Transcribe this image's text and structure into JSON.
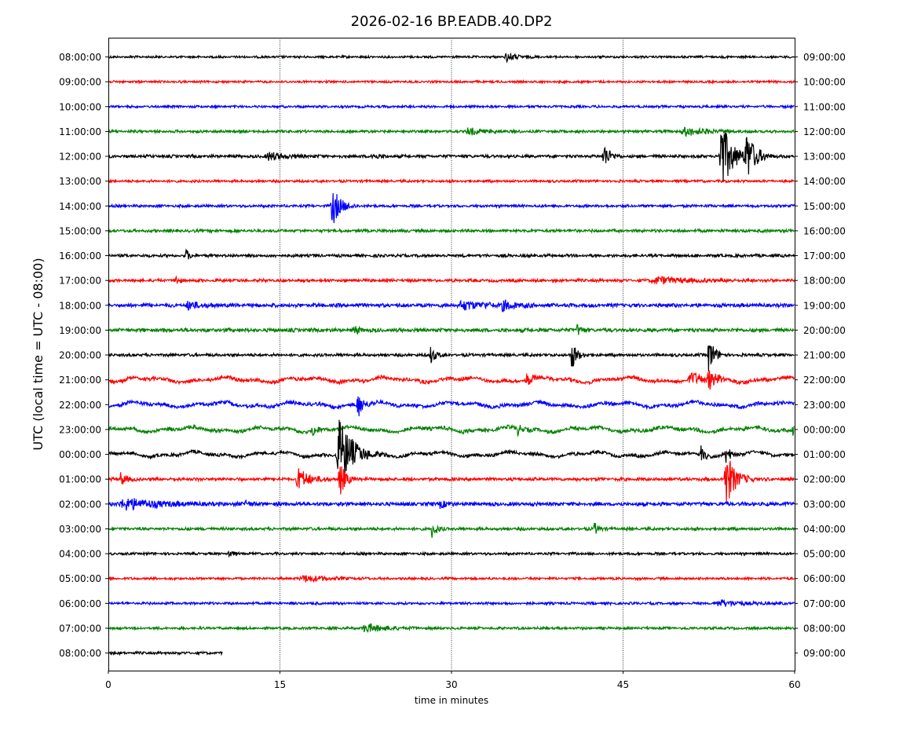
{
  "chart_data": {
    "type": "line",
    "title": "2026-02-16 BP.EADB.40.DP2",
    "xlabel": "time in minutes",
    "ylabel": "UTC (local time = UTC - 08:00)",
    "xlim": [
      0,
      60
    ],
    "x_ticks": [
      0,
      15,
      30,
      45,
      60
    ],
    "x_tick_labels": [
      "0",
      "15",
      "30",
      "45",
      "60"
    ],
    "grid": "vertical dotted lines at 15, 30, 45",
    "trace_colors": [
      "#000000",
      "#ff0000",
      "#0000ff",
      "#008000"
    ],
    "left_labels": [
      "08:00:00",
      "09:00:00",
      "10:00:00",
      "11:00:00",
      "12:00:00",
      "13:00:00",
      "14:00:00",
      "15:00:00",
      "16:00:00",
      "17:00:00",
      "18:00:00",
      "19:00:00",
      "20:00:00",
      "21:00:00",
      "22:00:00",
      "23:00:00",
      "00:00:00",
      "01:00:00",
      "02:00:00",
      "03:00:00",
      "04:00:00",
      "05:00:00",
      "06:00:00",
      "07:00:00",
      "08:00:00"
    ],
    "right_labels": [
      "09:00:00",
      "10:00:00",
      "11:00:00",
      "12:00:00",
      "13:00:00",
      "14:00:00",
      "15:00:00",
      "16:00:00",
      "17:00:00",
      "18:00:00",
      "19:00:00",
      "20:00:00",
      "21:00:00",
      "22:00:00",
      "23:00:00",
      "00:00:00",
      "01:00:00",
      "02:00:00",
      "03:00:00",
      "04:00:00",
      "05:00:00",
      "06:00:00",
      "07:00:00",
      "08:00:00",
      "09:00:00"
    ],
    "traces": [
      {
        "noise": 1.5,
        "end": 60,
        "events": [
          [
            34.8,
            6,
            0.8
          ]
        ]
      },
      {
        "noise": 1.5,
        "end": 60,
        "events": []
      },
      {
        "noise": 1.6,
        "end": 60,
        "events": []
      },
      {
        "noise": 1.8,
        "end": 60,
        "events": [
          [
            31.5,
            4,
            1.5
          ],
          [
            50.5,
            5,
            2
          ]
        ]
      },
      {
        "noise": 2.0,
        "end": 60,
        "events": [
          [
            14.0,
            5,
            1.5
          ],
          [
            23.0,
            4,
            0.6
          ],
          [
            43.3,
            18,
            0.5
          ],
          [
            53.6,
            45,
            1.0
          ],
          [
            55.8,
            30,
            0.8
          ]
        ]
      },
      {
        "noise": 1.7,
        "end": 60,
        "events": []
      },
      {
        "noise": 1.8,
        "end": 60,
        "events": [
          [
            19.6,
            26,
            0.7
          ]
        ]
      },
      {
        "noise": 2.0,
        "end": 60,
        "events": []
      },
      {
        "noise": 2.0,
        "end": 60,
        "events": [
          [
            6.8,
            7,
            0.3
          ]
        ]
      },
      {
        "noise": 2.0,
        "end": 60,
        "events": [
          [
            5.8,
            7,
            0.3
          ],
          [
            48.0,
            4,
            3
          ]
        ]
      },
      {
        "noise": 2.5,
        "end": 60,
        "events": [
          [
            7.0,
            5,
            1
          ],
          [
            31.0,
            5,
            2.5
          ],
          [
            34.5,
            5,
            1
          ]
        ]
      },
      {
        "noise": 2.5,
        "end": 60,
        "events": [
          [
            21.5,
            6,
            0.4
          ],
          [
            41.0,
            9,
            0.3
          ]
        ]
      },
      {
        "noise": 2.0,
        "end": 60,
        "events": [
          [
            28.2,
            12,
            0.4
          ],
          [
            40.5,
            18,
            0.5
          ],
          [
            52.5,
            24,
            0.5
          ]
        ]
      },
      {
        "noise": 2.5,
        "end": 60,
        "events": [
          [
            36.6,
            9,
            0.4
          ],
          [
            51.0,
            6,
            2
          ],
          [
            52.5,
            12,
            0.5
          ]
        ]
      },
      {
        "noise": 2.5,
        "end": 60,
        "events": [
          [
            21.8,
            17,
            0.5
          ]
        ]
      },
      {
        "noise": 2.5,
        "end": 60,
        "events": [
          [
            17.8,
            8,
            0.4
          ],
          [
            35.8,
            7,
            0.4
          ],
          [
            59.8,
            8,
            0.3
          ]
        ]
      },
      {
        "noise": 2.2,
        "end": 60,
        "events": [
          [
            20.2,
            44,
            1.2
          ],
          [
            51.8,
            11,
            0.3
          ],
          [
            54.0,
            12,
            0.4
          ]
        ]
      },
      {
        "noise": 2.2,
        "end": 60,
        "events": [
          [
            1.1,
            10,
            0.4
          ],
          [
            16.6,
            14,
            1.0
          ],
          [
            20.2,
            24,
            0.5
          ],
          [
            54.0,
            36,
            0.8
          ]
        ]
      },
      {
        "noise": 2.5,
        "end": 60,
        "events": [
          [
            1.5,
            7,
            3.0
          ],
          [
            12.0,
            7,
            0.3
          ],
          [
            29.0,
            5,
            0.5
          ]
        ]
      },
      {
        "noise": 2.0,
        "end": 60,
        "events": [
          [
            28.3,
            11,
            0.4
          ],
          [
            42.5,
            9,
            0.3
          ]
        ]
      },
      {
        "noise": 1.7,
        "end": 60,
        "events": [
          [
            10.5,
            6,
            0.3
          ]
        ]
      },
      {
        "noise": 1.6,
        "end": 60,
        "events": [
          [
            17.2,
            4,
            2
          ]
        ]
      },
      {
        "noise": 1.7,
        "end": 60,
        "events": [
          [
            53.5,
            4,
            2
          ]
        ]
      },
      {
        "noise": 1.7,
        "end": 60,
        "events": [
          [
            22.5,
            5,
            2
          ]
        ]
      },
      {
        "noise": 1.8,
        "end": 10,
        "events": []
      }
    ]
  }
}
